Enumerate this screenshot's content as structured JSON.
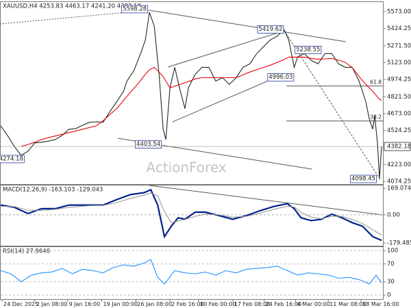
{
  "chart_data": [
    {
      "type": "line",
      "title": "XAUUSD,H4 4253.83 4463.17 4241.20 4382.18",
      "watermark": "ActionForex",
      "x": [
        0,
        10,
        20,
        30,
        40,
        50,
        60,
        70,
        80,
        90,
        100,
        110,
        120,
        130,
        140,
        150,
        160,
        170,
        180,
        185,
        195,
        205,
        212,
        218,
        225,
        232,
        238,
        242,
        248,
        255,
        262,
        270,
        275,
        285,
        295,
        305,
        315,
        325,
        335,
        345,
        355,
        365,
        375,
        385,
        395,
        405,
        415,
        422,
        430,
        435,
        445,
        455,
        465,
        475,
        485,
        495,
        505,
        515,
        525,
        535,
        540,
        545,
        548,
        552,
        555,
        558
      ],
      "series": [
        {
          "color": "#1f2a1f",
          "values": [
            4565,
            4480,
            4383,
            4304,
            4340,
            4414,
            4420,
            4430,
            4444,
            4480,
            4535,
            4540,
            4570,
            4596,
            4600,
            4596,
            4690,
            4778,
            4870,
            4960,
            5051,
            5203,
            5324,
            5567,
            5446,
            5021,
            4535,
            4444,
            4899,
            5081,
            4899,
            4717,
            4899,
            5021,
            5081,
            5081,
            4960,
            4990,
            4930,
            4990,
            5081,
            5112,
            5203,
            5263,
            5324,
            5355,
            5415,
            5324,
            5081,
            5172,
            5203,
            5142,
            5112,
            5203,
            5203,
            5112,
            5081,
            5081,
            4960,
            4778,
            4626,
            4535,
            4656,
            4414,
            4098,
            4382
          ]
        },
        {
          "color": "#e8000b",
          "values": [
            null,
            null,
            null,
            4383,
            4400,
            4420,
            4444,
            4460,
            4475,
            4490,
            4505,
            4520,
            4535,
            4550,
            4565,
            4610,
            4665,
            4717,
            4790,
            4825,
            4895,
            4965,
            5020,
            5060,
            5081,
            5040,
            5000,
            4960,
            4900,
            4915,
            4930,
            4945,
            4955,
            4980,
            4990,
            4990,
            4990,
            4990,
            4990,
            4990,
            5015,
            5040,
            5060,
            5080,
            5100,
            5125,
            5150,
            5172,
            5172,
            5172,
            5172,
            5160,
            5154,
            5156,
            5160,
            5145,
            5125,
            5080,
            5000,
            4930,
            4900,
            4869,
            4850,
            4820,
            4800,
            4790
          ]
        }
      ],
      "xlim": [
        0,
        560
      ],
      "ylim": [
        4050,
        5658
      ],
      "yticks": [
        {
          "value": 5573,
          "label": "5573.00"
        },
        5424.25,
        {
          "value": 5271.5,
          "label": "5271.50"
        },
        {
          "value": 5123,
          "label": "5123.00"
        },
        4974.25,
        {
          "value": 4821.5,
          "label": "4821.50"
        },
        {
          "value": 4673,
          "label": "4673.00"
        },
        4524.25,
        {
          "value": 4223,
          "label": "4223.00"
        },
        4074.25
      ],
      "last_price": 4382.18,
      "annotations": [
        {
          "x": 216,
          "value": 5598.28
        },
        {
          "x": 415,
          "value": 5419.62
        },
        {
          "x": 470,
          "value": 5238.55
        },
        {
          "x": 430,
          "value": 4996.03
        },
        {
          "x": 236,
          "value": 4403.54
        },
        {
          "x": 35,
          "value": 4274.18
        },
        {
          "x": 551,
          "value": 4098.45
        }
      ],
      "fib_levels": [
        {
          "label": "61.8",
          "value": 4917
        },
        {
          "label": "38.2",
          "value": 4608
        }
      ]
    },
    {
      "type": "line",
      "title": "MACD(12,26,9) -163.103 -129.043",
      "x": [
        0,
        20,
        40,
        60,
        80,
        100,
        130,
        150,
        170,
        190,
        210,
        220,
        230,
        240,
        250,
        260,
        270,
        285,
        300,
        320,
        340,
        360,
        380,
        400,
        420,
        430,
        440,
        455,
        470,
        485,
        500,
        515,
        530,
        545,
        558
      ],
      "series": [
        {
          "color": "#001f8a",
          "values": [
            62,
            48,
            8,
            39,
            39,
            62,
            62,
            62,
            97,
            129,
            141,
            160,
            62,
            -139,
            -72,
            -19,
            -28,
            17,
            17,
            -5,
            -28,
            -5,
            26,
            53,
            71,
            39,
            -19,
            -37,
            -28,
            4,
            -19,
            -50,
            -72,
            -139,
            -163
          ]
        },
        {
          "color": "#9a9a9a",
          "values": [
            55,
            52,
            30,
            28,
            35,
            48,
            58,
            60,
            78,
            105,
            125,
            140,
            120,
            20,
            -50,
            -40,
            -30,
            -10,
            5,
            0,
            -15,
            -10,
            10,
            35,
            55,
            50,
            15,
            -15,
            -25,
            -10,
            -10,
            -30,
            -55,
            -95,
            -129
          ]
        }
      ],
      "xlim": [
        0,
        560
      ],
      "ylim": [
        -197,
        187
      ],
      "yticks": [
        169.074,
        {
          "value": 0,
          "label": "0.00"
        },
        -179.485
      ]
    },
    {
      "type": "line",
      "title": "RSI(14) 27.9646",
      "x": [
        0,
        15,
        30,
        45,
        60,
        75,
        90,
        105,
        120,
        135,
        150,
        165,
        180,
        195,
        210,
        220,
        230,
        240,
        255,
        270,
        285,
        300,
        315,
        330,
        345,
        360,
        375,
        390,
        405,
        420,
        435,
        450,
        465,
        480,
        495,
        510,
        525,
        540,
        550,
        558
      ],
      "series": [
        {
          "color": "#1e90ff",
          "values": [
            55,
            48,
            30,
            45,
            50,
            52,
            60,
            48,
            58,
            55,
            50,
            62,
            68,
            65,
            72,
            80,
            40,
            25,
            55,
            50,
            48,
            52,
            45,
            55,
            50,
            58,
            60,
            62,
            65,
            55,
            45,
            50,
            48,
            45,
            38,
            40,
            35,
            25,
            45,
            28
          ]
        }
      ],
      "xlim": [
        0,
        560
      ],
      "ylim": [
        -9,
        108
      ],
      "yticks": [
        100,
        70,
        30,
        0
      ],
      "xticks": [
        {
          "value": 2,
          "label": "24 Dec 2025"
        },
        {
          "value": 50,
          "label": "2 Jan 08:00"
        },
        {
          "value": 98,
          "label": "9 Jan 16:00"
        },
        {
          "value": 148,
          "label": "19 Jan 00:00"
        },
        {
          "value": 198,
          "label": "26 Jan 08:00"
        },
        {
          "value": 248,
          "label": "2 Feb 16:00"
        },
        {
          "value": 290,
          "label": "10 Feb 00:00"
        },
        {
          "value": 340,
          "label": "17 Feb 08:00"
        },
        {
          "value": 386,
          "label": "24 Feb 16:00"
        },
        {
          "value": 432,
          "label": "4 Mar 00:00"
        },
        {
          "value": 480,
          "label": "11 Mar 08:00"
        },
        {
          "value": 528,
          "label": "18 Mar 16:00"
        }
      ]
    }
  ]
}
